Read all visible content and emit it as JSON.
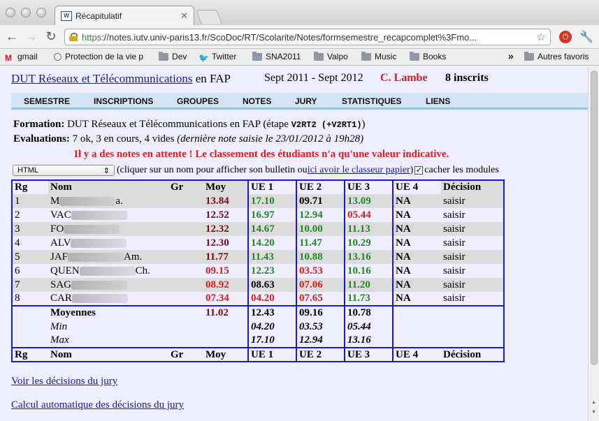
{
  "browser": {
    "tab_title": "Récapitulatif",
    "tab_favicon_text": "W",
    "url_scheme": "https",
    "url_rest": "://notes.iutv.univ-paris13.fr/ScoDoc/RT/Scolarite/Notes/formsemestre_recapcomplet%3Fmo...",
    "bookmarks": [
      {
        "label": "gmail",
        "icon": "gmail-icon"
      },
      {
        "label": "Protection de la vie p",
        "icon": "generic-icon"
      },
      {
        "label": "Dev",
        "icon": "folder-icon"
      },
      {
        "label": "Twitter",
        "icon": "twitter-icon"
      },
      {
        "label": "SNA2011",
        "icon": "folder-icon"
      },
      {
        "label": "Valpo",
        "icon": "folder-icon"
      },
      {
        "label": "Music",
        "icon": "folder-icon"
      },
      {
        "label": "Books",
        "icon": "folder-icon"
      },
      {
        "label": "Autres favoris",
        "icon": "folder-icon"
      }
    ],
    "more_label": "»"
  },
  "header": {
    "title_link": "DUT Réseaux et Télécommunications",
    "title_suffix": " en FAP",
    "period": "Sept 2011 - Sept 2012",
    "responsable": "C. Lambe",
    "inscrits": "8 inscrits"
  },
  "menu": [
    "SEMESTRE",
    "INSCRIPTIONS",
    "GROUPES",
    "NOTES",
    "JURY",
    "STATISTIQUES",
    "LIENS"
  ],
  "info": {
    "formation_label": "Formation:",
    "formation_value": " DUT Réseaux et Télécommunications en FAP",
    "etape_prefix": "  (étape ",
    "etape_code": "V2RT2 (+V2RT1)",
    "etape_suffix": ")",
    "evaluations_label": "Evaluations:",
    "evaluations_value": " 7 ok, 3 en cours, 4 vides ",
    "evaluations_note": "(dernière note saisie le 23/01/2012 à 19h28)",
    "warning": "Il y a des notes en attente ! Le classement des étudiants n'a qu'une valeur indicative."
  },
  "format": {
    "selected": "HTML",
    "hint_before": "(cliquer sur un nom pour afficher son bulletin ou ",
    "hint_link": "ici avoir le classeur papier",
    "hint_after": ")",
    "checkbox_checked": true,
    "checkbox_mark": "✓",
    "checkbox_label": "cacher les modules"
  },
  "table": {
    "headers": [
      "Rg",
      "Nom",
      "Gr",
      "Moy",
      "UE 1",
      "UE 2",
      "UE 3",
      "UE 4",
      "Décision"
    ],
    "rows": [
      {
        "rg": "1",
        "nom_start": "M",
        "nom_end": "a.",
        "moy": "13.84",
        "moy_color": "dark",
        "ue1": "17.10",
        "ue1_c": "green",
        "ue2": "09.71",
        "ue2_c": "blk",
        "ue3": "13.09",
        "ue3_c": "green",
        "ue4": "NA",
        "decision": "saisir"
      },
      {
        "rg": "2",
        "nom_start": "VAC",
        "nom_end": "",
        "moy": "12.52",
        "moy_color": "dark",
        "ue1": "16.97",
        "ue1_c": "green",
        "ue2": "12.94",
        "ue2_c": "green",
        "ue3": "05.44",
        "ue3_c": "red",
        "ue4": "NA",
        "decision": "saisir"
      },
      {
        "rg": "3",
        "nom_start": "FO",
        "nom_end": "",
        "moy": "12.32",
        "moy_color": "dark",
        "ue1": "14.67",
        "ue1_c": "green",
        "ue2": "10.00",
        "ue2_c": "green",
        "ue3": "11.13",
        "ue3_c": "green",
        "ue4": "NA",
        "decision": "saisir"
      },
      {
        "rg": "4",
        "nom_start": "ALV",
        "nom_end": "",
        "moy": "12.30",
        "moy_color": "dark",
        "ue1": "14.20",
        "ue1_c": "green",
        "ue2": "11.47",
        "ue2_c": "green",
        "ue3": "10.29",
        "ue3_c": "green",
        "ue4": "NA",
        "decision": "saisir"
      },
      {
        "rg": "5",
        "nom_start": "JAF",
        "nom_end": "Am.",
        "moy": "11.77",
        "moy_color": "dark",
        "ue1": "11.43",
        "ue1_c": "green",
        "ue2": "10.88",
        "ue2_c": "green",
        "ue3": "13.16",
        "ue3_c": "green",
        "ue4": "NA",
        "decision": "saisir"
      },
      {
        "rg": "6",
        "nom_start": "QUEN",
        "nom_end": "Ch.",
        "moy": "09.15",
        "moy_color": "red",
        "ue1": "12.23",
        "ue1_c": "green",
        "ue2": "03.53",
        "ue2_c": "red",
        "ue3": "10.16",
        "ue3_c": "green",
        "ue4": "NA",
        "decision": "saisir"
      },
      {
        "rg": "7",
        "nom_start": "SAG",
        "nom_end": "",
        "moy": "08.92",
        "moy_color": "red",
        "ue1": "08.63",
        "ue1_c": "blk",
        "ue2": "07.06",
        "ue2_c": "red",
        "ue3": "11.20",
        "ue3_c": "green",
        "ue4": "NA",
        "decision": "saisir"
      },
      {
        "rg": "8",
        "nom_start": "CAR",
        "nom_end": "",
        "moy": "07.34",
        "moy_color": "red",
        "ue1": "04.20",
        "ue1_c": "red",
        "ue2": "07.65",
        "ue2_c": "red",
        "ue3": "11.73",
        "ue3_c": "green",
        "ue4": "NA",
        "decision": "saisir"
      }
    ],
    "moyennes": {
      "label": "Moyennes",
      "moy": "11.02",
      "ue1": "12.43",
      "ue2": "09.16",
      "ue3": "10.78"
    },
    "min": {
      "label": "Min",
      "ue1": "04.20",
      "ue2": "03.53",
      "ue3": "05.44"
    },
    "max": {
      "label": "Max",
      "ue1": "17.10",
      "ue2": "12.94",
      "ue3": "13.16"
    }
  },
  "links": {
    "decisions": "Voir les décisions du jury",
    "auto": "Calcul automatique des décisions du jury"
  },
  "colors": {
    "link": "#1a1aaa",
    "warning": "#e21b1b",
    "good": "#1f8a1f",
    "menu_bg": "#d3e5f4",
    "page_bg": "#eeeeff"
  }
}
